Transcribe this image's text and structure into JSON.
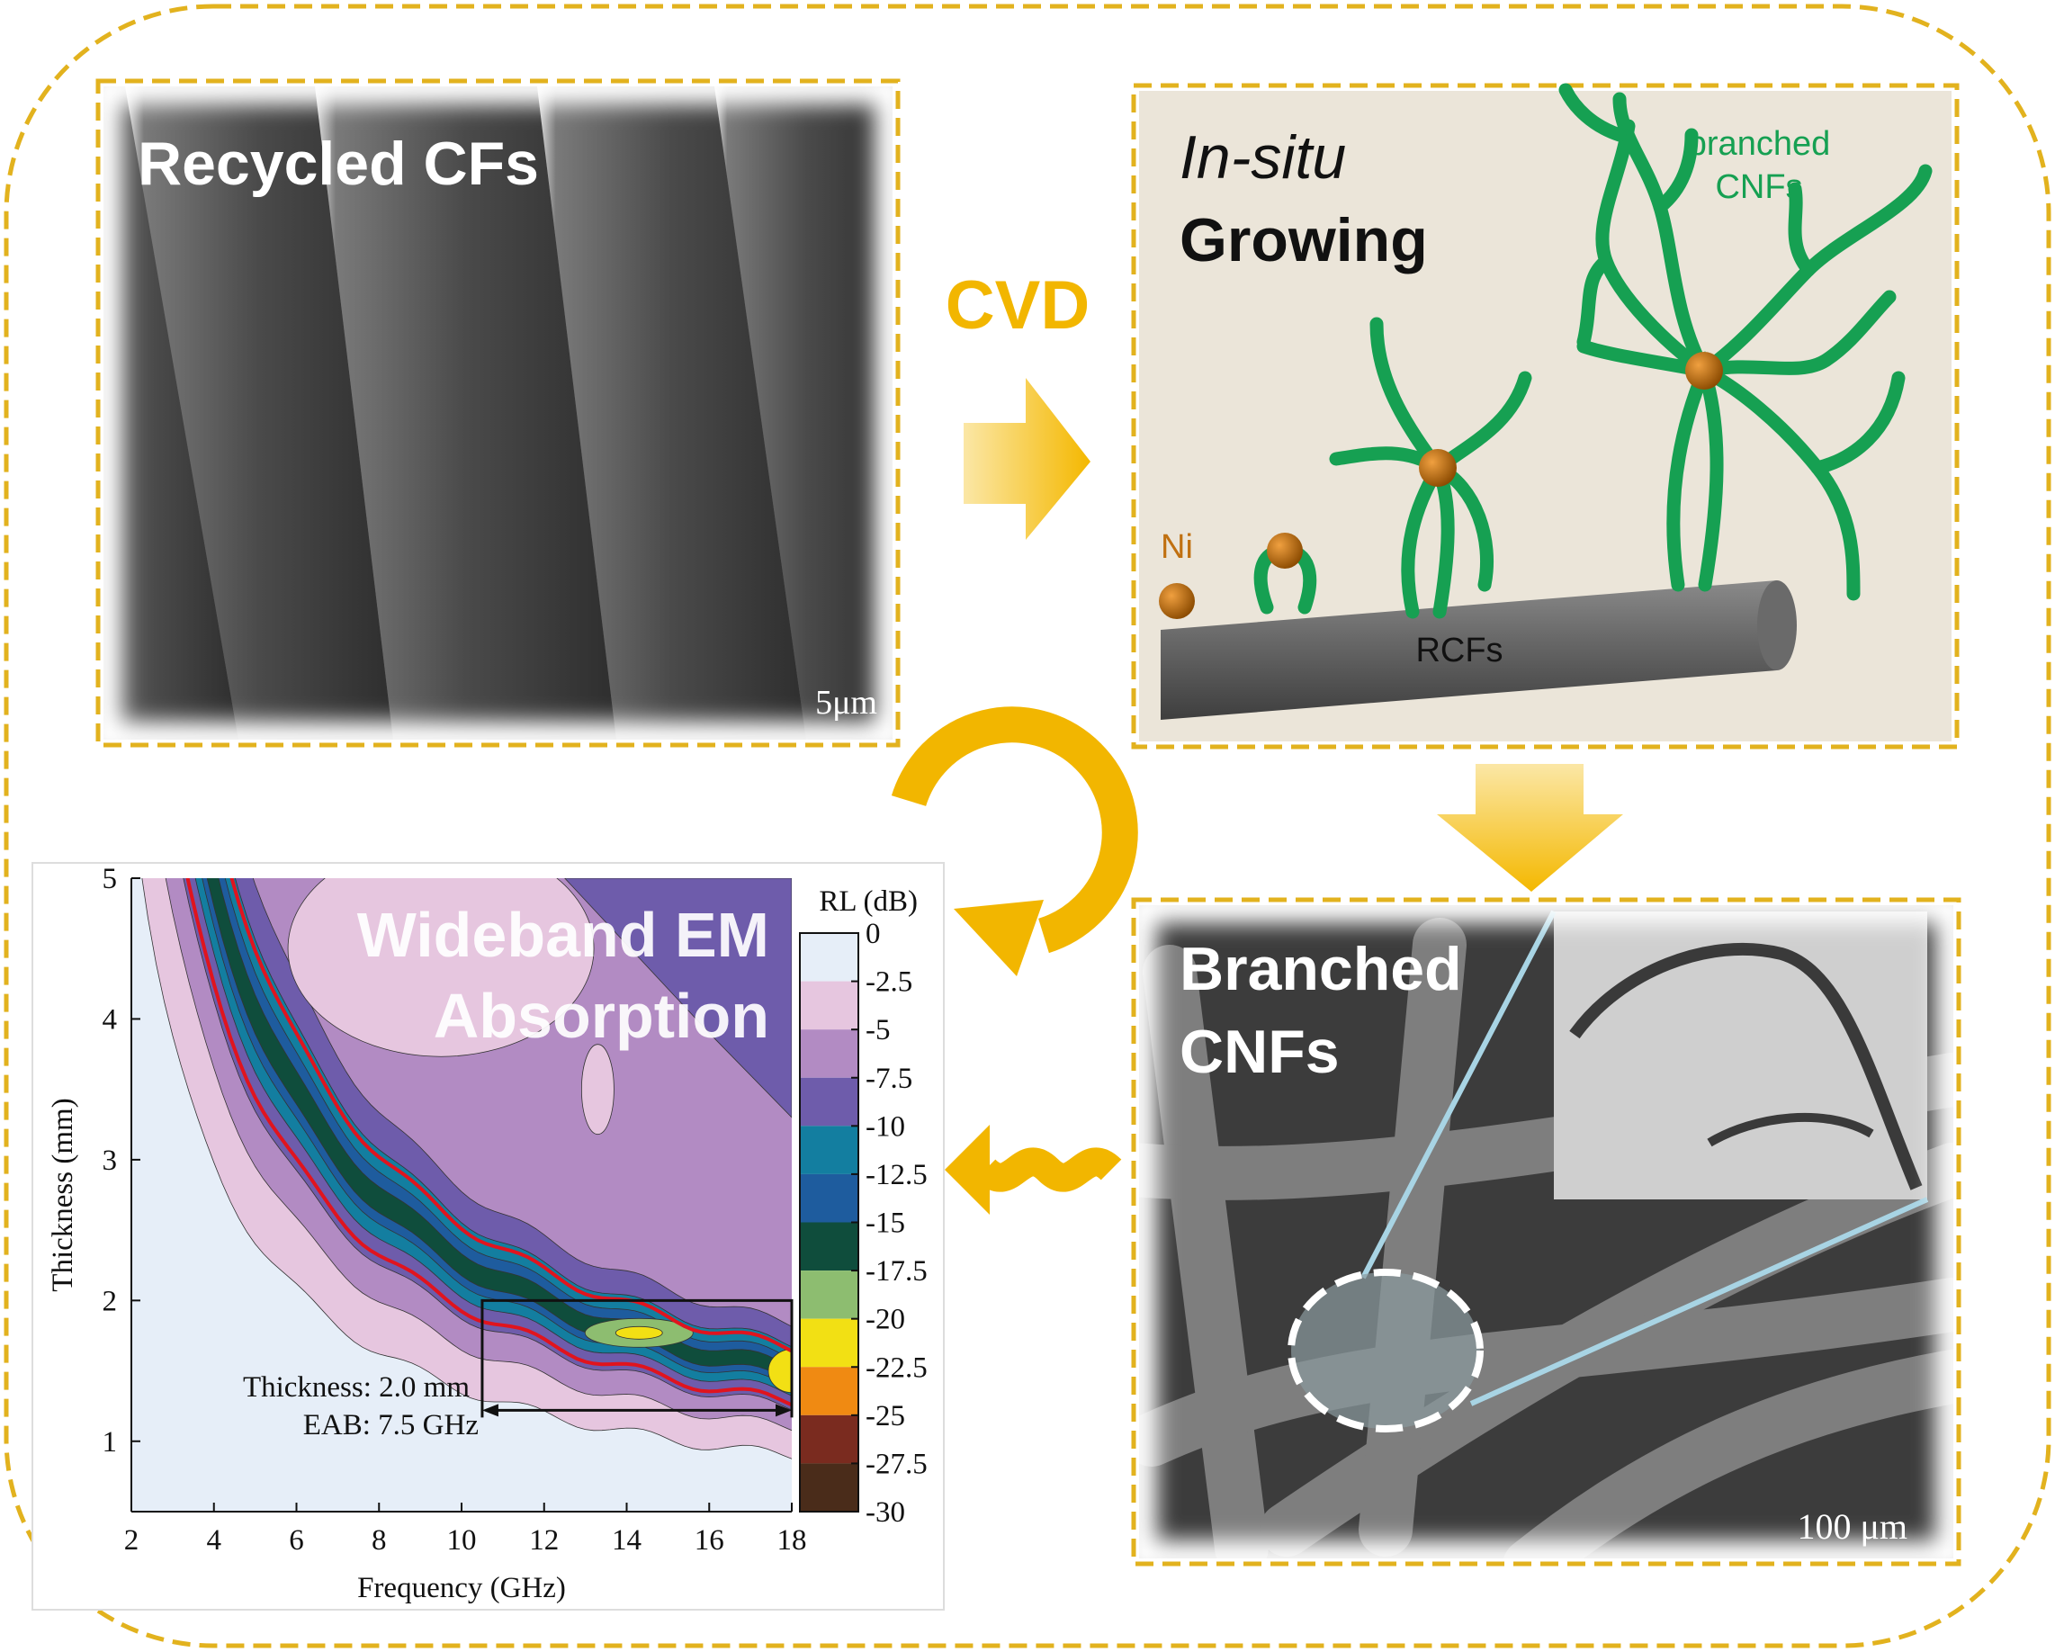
{
  "process": {
    "cvd": "CVD"
  },
  "panels": {
    "recycled": {
      "title": "Recycled CFs",
      "scale_bar": "5μm"
    },
    "growing": {
      "title_italic": "In-situ",
      "title": "Growing",
      "branch_label_1": "branched",
      "branch_label_2": "CNFs",
      "ni_label": "Ni",
      "fiber_label": "RCFs"
    },
    "branched": {
      "title_1": "Branched",
      "title_2": "CNFs",
      "scale_bar": "100 μm"
    },
    "absorption": {
      "overlay_1": "Wideband EM",
      "overlay_2": "Absorption",
      "plot": {
        "xlabel": "Frequency (GHz)",
        "ylabel": "Thickness (mm)",
        "xlim": [
          2,
          18
        ],
        "ylim": [
          0.5,
          5
        ],
        "xticks": [
          2,
          4,
          6,
          8,
          10,
          12,
          14,
          16,
          18
        ],
        "yticks": [
          1,
          2,
          3,
          4,
          5
        ],
        "colorbar_title": "RL (dB)",
        "colorbar_ticks": [
          0,
          -2.5,
          -5,
          -7.5,
          -10,
          -12.5,
          -15,
          -17.5,
          -20,
          -22.5,
          -25,
          -27.5,
          -30
        ],
        "band_colors": [
          "#e6eef8",
          "#e6c6df",
          "#b28bc3",
          "#6e5cab",
          "#137ea0",
          "#1e5c9e",
          "#0f4d3c",
          "#8dbd70",
          "#f2e014",
          "#f08a12",
          "#7a2b1f",
          "#4a2c1a"
        ],
        "annotation_1": "Thickness: 2.0 mm",
        "annotation_2": "EAB: 7.5 GHz",
        "eab_box": {
          "thickness": 2,
          "from": 10.5
        }
      }
    }
  }
}
